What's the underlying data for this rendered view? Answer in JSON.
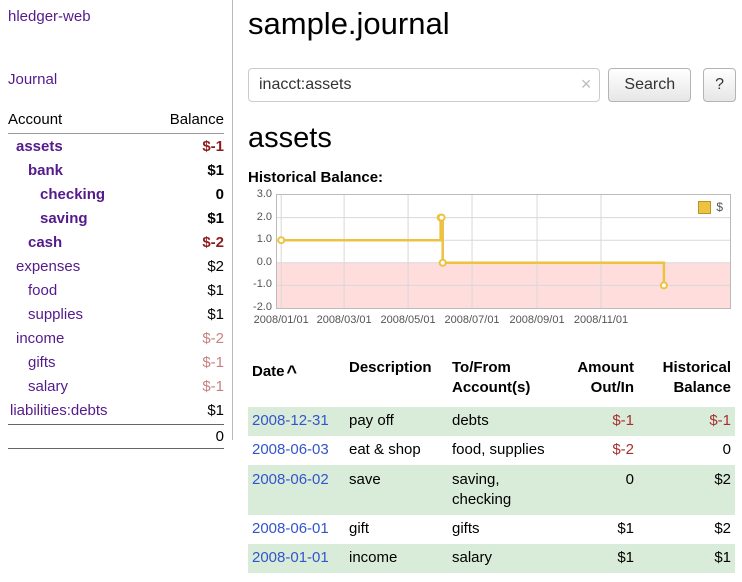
{
  "app_title": "hledger-web",
  "sidebar": {
    "journal_link": "Journal",
    "accounts": {
      "header_account": "Account",
      "header_balance": "Balance",
      "rows": [
        {
          "name": "assets",
          "balance": "$-1"
        },
        {
          "name": "bank",
          "balance": "$1"
        },
        {
          "name": "checking",
          "balance": "0"
        },
        {
          "name": "saving",
          "balance": "$1"
        },
        {
          "name": "cash",
          "balance": "$-2"
        },
        {
          "name": "expenses",
          "balance": "$2"
        },
        {
          "name": "food",
          "balance": "$1"
        },
        {
          "name": "supplies",
          "balance": "$1"
        },
        {
          "name": "income",
          "balance": "$-2"
        },
        {
          "name": "gifts",
          "balance": "$-1"
        },
        {
          "name": "salary",
          "balance": "$-1"
        },
        {
          "name": "liabilities:debts",
          "balance": "$1"
        }
      ],
      "total": "0"
    }
  },
  "main": {
    "title": "sample.journal",
    "search": {
      "value": "inacct:assets",
      "clear": "×",
      "button": "Search",
      "help": "?"
    },
    "account_heading": "assets",
    "chart_title": "Historical Balance:"
  },
  "chart_data": {
    "type": "line",
    "step": true,
    "title": "Historical Balance",
    "legend": {
      "position": "top-right",
      "series_label": "$"
    },
    "series": [
      {
        "name": "$",
        "color": "#edc240",
        "points": [
          {
            "date": "2008-01-01",
            "value": 1
          },
          {
            "date": "2008-06-01",
            "value": 2
          },
          {
            "date": "2008-06-02",
            "value": 2
          },
          {
            "date": "2008-06-03",
            "value": 0
          },
          {
            "date": "2008-12-31",
            "value": -1
          }
        ]
      }
    ],
    "ylim": [
      -2,
      3
    ],
    "yticks": [
      3,
      2,
      1,
      0,
      -1,
      -2
    ],
    "ytick_labels": [
      "3.0",
      "2.0",
      "1.0",
      "0.0",
      "-1.0",
      "-2.0"
    ],
    "xticks": [
      "2008-01-01",
      "2008-03-01",
      "2008-05-01",
      "2008-07-01",
      "2008-09-01",
      "2008-11-01"
    ],
    "xtick_labels": [
      "2008/01/01",
      "2008/03/01",
      "2008/05/01",
      "2008/07/01",
      "2008/09/01",
      "2008/11/01"
    ],
    "x_domain": [
      "2007-12-28",
      "2009-03-04"
    ],
    "grid": true,
    "negative_region_color": "#ffdddd"
  },
  "register": {
    "headers": {
      "date": "Date",
      "sort_indicator": "^",
      "description": "Description",
      "accounts": "To/From Account(s)",
      "amount": "Amount Out/In",
      "balance": "Historical Balance"
    },
    "rows": [
      {
        "date": "2008-12-31",
        "description": "pay off",
        "accounts": "debts",
        "amount": "$-1",
        "balance": "$-1"
      },
      {
        "date": "2008-06-03",
        "description": "eat & shop",
        "accounts": "food, supplies",
        "amount": "$-2",
        "balance": "0"
      },
      {
        "date": "2008-06-02",
        "description": "save",
        "accounts": "saving, checking",
        "amount": "0",
        "balance": "$2"
      },
      {
        "date": "2008-06-01",
        "description": "gift",
        "accounts": "gifts",
        "amount": "$1",
        "balance": "$2"
      },
      {
        "date": "2008-01-01",
        "description": "income",
        "accounts": "salary",
        "amount": "$1",
        "balance": "$1"
      }
    ]
  },
  "colors": {
    "link_purple": "#551a8b",
    "link_blue": "#3355cc",
    "negative_strong": "#8f1d1d",
    "negative_soft": "#c98181",
    "negative_table": "#a82e2e",
    "row_shade_green": "#d9ecd9",
    "chart_line": "#edc240",
    "chart_negative_bg": "#ffdddd"
  }
}
